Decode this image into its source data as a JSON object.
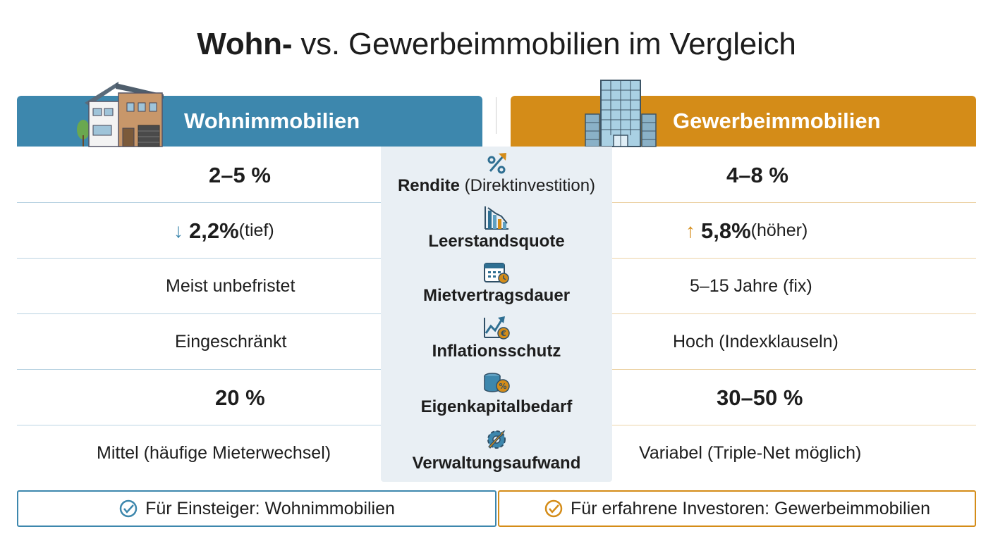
{
  "title_bold": "Wohn-",
  "title_rest": " vs. Gewerbeimmobilien im Vergleich",
  "left_header": "Wohnimmobilien",
  "right_header": "Gewerbeimmobilien",
  "criteria": [
    {
      "label": "Rendite",
      "note": " (Direktinvestition)",
      "icon": "percent-growth-icon"
    },
    {
      "label": "Leerstandsquote",
      "note": "",
      "icon": "declining-bar-chart-icon"
    },
    {
      "label": "Mietvertragsdauer",
      "note": "",
      "icon": "calendar-clock-icon"
    },
    {
      "label": "Inflationsschutz",
      "note": "",
      "icon": "rising-trend-euro-icon"
    },
    {
      "label": "Eigenkapitalbedarf",
      "note": "",
      "icon": "coin-stack-percent-icon"
    },
    {
      "label": "Verwaltungsaufwand",
      "note": "",
      "icon": "gear-wrench-icon"
    }
  ],
  "left_values": [
    {
      "main": "2–5 %",
      "sub": ""
    },
    {
      "main": "2,2%",
      "sub": " (tief)",
      "arrow": "↓"
    },
    {
      "main": "Meist unbefristet",
      "sub": ""
    },
    {
      "main": "Eingeschränkt",
      "sub": ""
    },
    {
      "main": "20 %",
      "sub": ""
    },
    {
      "main": "Mittel (häufige Mieterwechsel)",
      "sub": ""
    }
  ],
  "right_values": [
    {
      "main": "4–8 %",
      "sub": ""
    },
    {
      "main": "5,8%",
      "sub": " (höher)",
      "arrow": "↑"
    },
    {
      "main": "5–15 Jahre (fix)",
      "sub": ""
    },
    {
      "main": "Hoch (Indexklauseln)",
      "sub": ""
    },
    {
      "main": "30–50 %",
      "sub": ""
    },
    {
      "main": "Variabel (Triple-Net möglich)",
      "sub": ""
    }
  ],
  "recommend_left": "Für Einsteiger: Wohnimmobilien",
  "recommend_right": "Für erfahrene Investoren: Gewerbeimmobilien",
  "colors": {
    "blue": "#3d87ad",
    "orange": "#d48c18",
    "center_bg": "#e9eff4"
  }
}
